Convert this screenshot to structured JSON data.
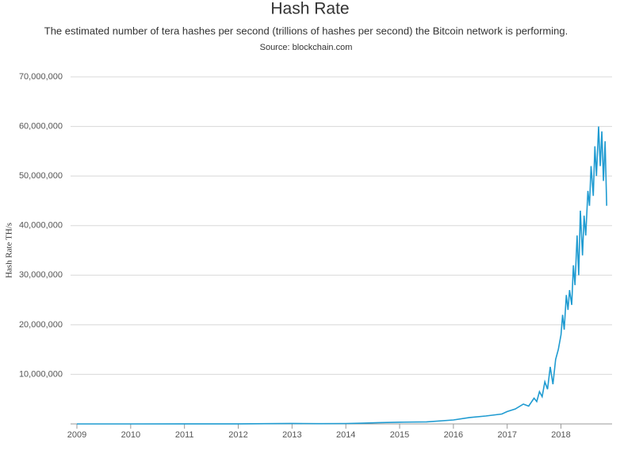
{
  "chart_data": {
    "type": "line",
    "title": "Hash Rate",
    "subtitle": "The estimated number of tera hashes per second (trillions of hashes per second) the Bitcoin network is performing.",
    "source": "Source: blockchain.com",
    "y_label": "Hash Rate TH/s",
    "x": [
      2009,
      2010,
      2011,
      2012,
      2013,
      2013.5,
      2014,
      2014.3,
      2014.6,
      2015,
      2015.5,
      2016,
      2016.3,
      2016.6,
      2016.9,
      2017,
      2017.15,
      2017.3,
      2017.4,
      2017.5,
      2017.55,
      2017.6,
      2017.65,
      2017.7,
      2017.75,
      2017.8,
      2017.85,
      2017.9,
      2017.95,
      2018,
      2018.03,
      2018.06,
      2018.1,
      2018.13,
      2018.16,
      2018.2,
      2018.23,
      2018.26,
      2018.3,
      2018.33,
      2018.36,
      2018.4,
      2018.43,
      2018.46,
      2018.5,
      2018.53,
      2018.56,
      2018.6,
      2018.63,
      2018.66,
      2018.7,
      2018.73,
      2018.76,
      2018.79,
      2018.82,
      2018.85
    ],
    "series": [
      {
        "name": "Hash Rate",
        "color": "#1f9bd1",
        "values": [
          0,
          0,
          10000,
          20000,
          100000,
          40000,
          80000,
          150000,
          250000,
          350000,
          420000,
          800000,
          1300000,
          1600000,
          2000000,
          2500000,
          3000000,
          4000000,
          3600000,
          5200000,
          4500000,
          6500000,
          5500000,
          8500000,
          7000000,
          11500000,
          8000000,
          13000000,
          15000000,
          18000000,
          22000000,
          19000000,
          26000000,
          23000000,
          27000000,
          24000000,
          32000000,
          28000000,
          38000000,
          30000000,
          43000000,
          34000000,
          42000000,
          38000000,
          47000000,
          44000000,
          52000000,
          46000000,
          56000000,
          50000000,
          60000000,
          52000000,
          59000000,
          49000000,
          57000000,
          44000000
        ]
      }
    ],
    "xlim": [
      2009,
      2018.95
    ],
    "xticks": [
      2009,
      2010,
      2011,
      2012,
      2013,
      2014,
      2015,
      2016,
      2017,
      2018
    ],
    "ylim": [
      0,
      70000000
    ],
    "yticks": [
      {
        "value": 10000000,
        "label": "10,000,000"
      },
      {
        "value": 20000000,
        "label": "20,000,000"
      },
      {
        "value": 30000000,
        "label": "30,000,000"
      },
      {
        "value": 40000000,
        "label": "40,000,000"
      },
      {
        "value": 50000000,
        "label": "50,000,000"
      },
      {
        "value": 60000000,
        "label": "60,000,000"
      },
      {
        "value": 70000000,
        "label": "70,000,000"
      }
    ],
    "grid": true
  }
}
